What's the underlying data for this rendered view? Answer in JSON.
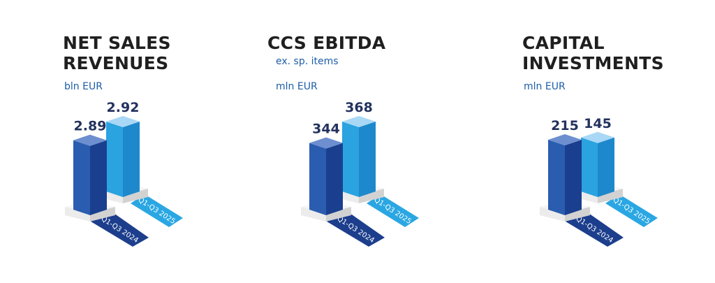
{
  "colors": {
    "bar_2024": "#2a5db0",
    "bar_2025": "#2aa3e0",
    "value_text": "#23325e",
    "unit_text": "#1d5ea8"
  },
  "chart_data": [
    {
      "type": "bar",
      "title": "NET SALES REVENUES",
      "title_lines": [
        "NET SALES",
        "REVENUES"
      ],
      "subtitle": "",
      "unit": "bln EUR",
      "categories": [
        "Q1-Q3 2024",
        "Q1-Q3 2025"
      ],
      "values": [
        2.89,
        2.92
      ],
      "value_labels": [
        "2.89",
        "2.92"
      ]
    },
    {
      "type": "bar",
      "title": "CCS EBITDA",
      "title_lines": [
        "CCS EBITDA"
      ],
      "subtitle": "ex. sp. items",
      "unit": "mln EUR",
      "categories": [
        "Q1-Q3 2024",
        "Q1-Q3 2025"
      ],
      "values": [
        344,
        368
      ],
      "value_labels": [
        "344",
        "368"
      ]
    },
    {
      "type": "bar",
      "title": "CAPITAL INVESTMENTS",
      "title_lines": [
        "CAPITAL",
        "INVESTMENTS"
      ],
      "subtitle": "",
      "unit": "mln EUR",
      "categories": [
        "Q1-Q3 2024",
        "Q1-Q3 2025"
      ],
      "values": [
        215,
        145
      ],
      "value_labels": [
        "215",
        "145"
      ]
    }
  ]
}
